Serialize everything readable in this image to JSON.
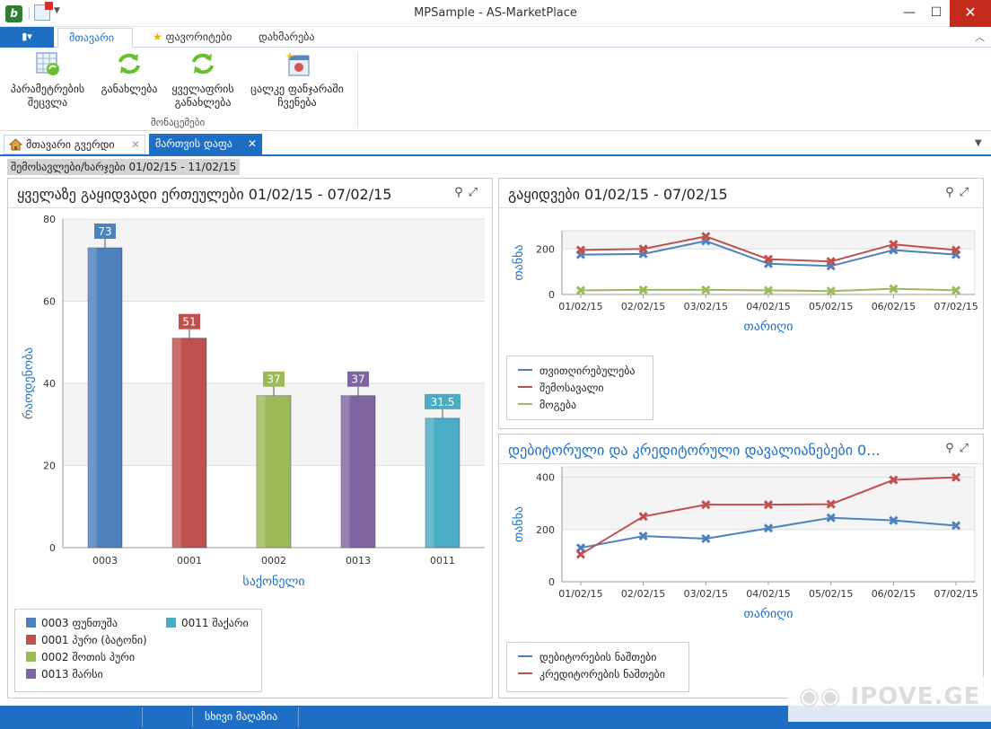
{
  "window": {
    "title": "MPSample - AS-MarketPlace"
  },
  "ribbon": {
    "tabs": [
      {
        "label": "მთავარი"
      },
      {
        "label": "ფავორიტები"
      },
      {
        "label": "დახმარება"
      }
    ],
    "buttons": [
      {
        "label": "პარამეტრების შეცვლა"
      },
      {
        "label": "განახლება"
      },
      {
        "label": "ყველაფრის განახლება"
      },
      {
        "label": "ცალკე ფანჯარაში ჩვენება"
      }
    ],
    "group_label": "მონაცემები"
  },
  "doc_tabs": [
    {
      "label": "მთავარი გვერდი"
    },
    {
      "label": "მართვის დაფა"
    }
  ],
  "period_label": "შემოსავლები/ხარჯები 01/02/15 - 11/02/15",
  "colors": {
    "accent": "#1e6fc4",
    "blue": "#4f81bd",
    "red": "#c0504d",
    "green": "#9bbb59",
    "purple": "#8064a2",
    "teal": "#4bacc6"
  },
  "panels": {
    "top_units": {
      "title": "ყველაზე გაყიდვადი ერთეულები 01/02/15 - 07/02/15"
    },
    "sales": {
      "title": "გაყიდვები 01/02/15 - 07/02/15"
    },
    "debts": {
      "title": "დებიტორული და კრედიტორული დავალიანებები 0..."
    }
  },
  "chart_data": [
    {
      "type": "bar",
      "title": "ყველაზე გაყიდვადი ერთეულები 01/02/15 - 07/02/15",
      "categories": [
        "0003",
        "0001",
        "0002",
        "0013",
        "0011"
      ],
      "values": [
        73,
        51,
        37,
        37,
        31.5
      ],
      "data_labels": [
        "73",
        "51",
        "37",
        "37",
        "31.5"
      ],
      "colors": [
        "#4f81bd",
        "#c0504d",
        "#9bbb59",
        "#8064a2",
        "#4bacc6"
      ],
      "xlabel": "საქონელი",
      "ylabel": "რაოდენობა",
      "ylim": [
        0,
        80
      ],
      "yticks": [
        "0",
        "20",
        "40",
        "60",
        "80"
      ],
      "legend": [
        "0003 ფუნთუშა",
        "0001 პური (ბატონი)",
        "0002 შოთის პური",
        "0013 მარსი",
        "0011 შაქარი"
      ],
      "legend_placement": "bottom-left",
      "grid": true
    },
    {
      "type": "line",
      "title": "გაყიდვები 01/02/15 - 07/02/15",
      "x": [
        "01/02/15",
        "02/02/15",
        "03/02/15",
        "04/02/15",
        "05/02/15",
        "06/02/15",
        "07/02/15"
      ],
      "series": [
        {
          "name": "თვითღირებულება",
          "color": "#4f81bd",
          "values": [
            175,
            178,
            235,
            135,
            125,
            195,
            175
          ]
        },
        {
          "name": "შემოსავალი",
          "color": "#c0504d",
          "values": [
            195,
            200,
            255,
            155,
            145,
            220,
            195
          ]
        },
        {
          "name": "მოგება",
          "color": "#9bbb59",
          "values": [
            18,
            20,
            20,
            18,
            15,
            25,
            18
          ]
        }
      ],
      "xlabel": "თარიღი",
      "ylabel": "თანხა",
      "ylim": [
        0,
        280
      ],
      "yticks": [
        "0",
        "200"
      ],
      "legend_placement": "bottom-left",
      "grid": true
    },
    {
      "type": "line",
      "title": "დებიტორული და კრედიტორული დავალიანებები 0...",
      "x": [
        "01/02/15",
        "02/02/15",
        "03/02/15",
        "04/02/15",
        "05/02/15",
        "06/02/15",
        "07/02/15"
      ],
      "series": [
        {
          "name": "დებიტორების ნაშთები",
          "color": "#4f81bd",
          "values": [
            130,
            175,
            165,
            205,
            245,
            235,
            215
          ]
        },
        {
          "name": "კრედიტორების ნაშთები",
          "color": "#c0504d",
          "values": [
            105,
            250,
            295,
            295,
            297,
            390,
            400
          ]
        }
      ],
      "xlabel": "თარიღი",
      "ylabel": "თანხა",
      "ylim": [
        0,
        440
      ],
      "yticks": [
        "0",
        "200",
        "400"
      ],
      "legend_placement": "bottom-left",
      "grid": true
    }
  ],
  "statusbar": {
    "text": "სხივი მაღაზია"
  },
  "watermark": {
    "text": "IPOVE.GE"
  }
}
